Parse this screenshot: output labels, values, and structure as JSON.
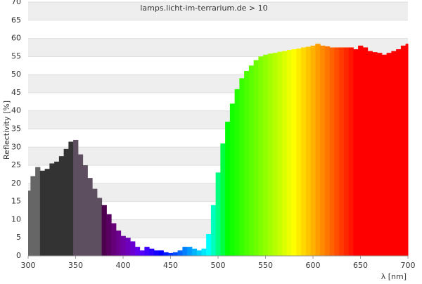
{
  "chart_data": {
    "type": "spectrum",
    "title": "lamps.licht-im-terrarium.de > 10",
    "y_label": "Reflectivity [%]",
    "x_label": "λ [nm]",
    "x": [
      300,
      305,
      310,
      315,
      320,
      325,
      330,
      335,
      340,
      345,
      350,
      355,
      360,
      365,
      370,
      375,
      380,
      385,
      390,
      395,
      400,
      405,
      410,
      415,
      420,
      425,
      430,
      435,
      440,
      445,
      450,
      455,
      460,
      465,
      470,
      475,
      480,
      485,
      490,
      495,
      500,
      505,
      510,
      515,
      520,
      525,
      530,
      535,
      540,
      545,
      550,
      555,
      560,
      565,
      570,
      575,
      580,
      585,
      590,
      595,
      600,
      605,
      610,
      615,
      620,
      625,
      630,
      635,
      640,
      645,
      650,
      655,
      660,
      665,
      670,
      675,
      680,
      685,
      690,
      695,
      700
    ],
    "values": [
      18,
      22,
      24.5,
      23.5,
      24,
      25.5,
      26,
      27.5,
      29.5,
      31.5,
      32,
      28,
      25,
      21.5,
      18.5,
      16,
      14,
      11.5,
      9,
      7,
      5.5,
      5,
      4,
      2.5,
      1.5,
      2.5,
      2,
      1.5,
      1.5,
      1,
      0.8,
      1,
      1.5,
      2.5,
      2.5,
      2,
      1.5,
      2,
      6,
      14,
      23,
      31,
      37,
      42,
      46,
      49,
      51,
      52.5,
      54,
      55,
      55.5,
      55.8,
      56,
      56.3,
      56.5,
      56.8,
      57,
      57.2,
      57.5,
      57.7,
      58,
      58.5,
      58,
      57.8,
      57.5,
      57.5,
      57.5,
      57.5,
      57.5,
      57,
      58,
      57.5,
      56.5,
      56.2,
      56,
      55.5,
      56,
      56.5,
      57,
      58,
      58.5
    ],
    "xlim": [
      300,
      700
    ],
    "ylim": [
      0,
      70
    ],
    "xticks": [
      300,
      350,
      400,
      450,
      500,
      550,
      600,
      650,
      700
    ],
    "yticks": [
      0,
      5,
      10,
      15,
      20,
      25,
      30,
      35,
      40,
      45,
      50,
      55,
      60,
      65,
      70
    ],
    "grid": true
  }
}
